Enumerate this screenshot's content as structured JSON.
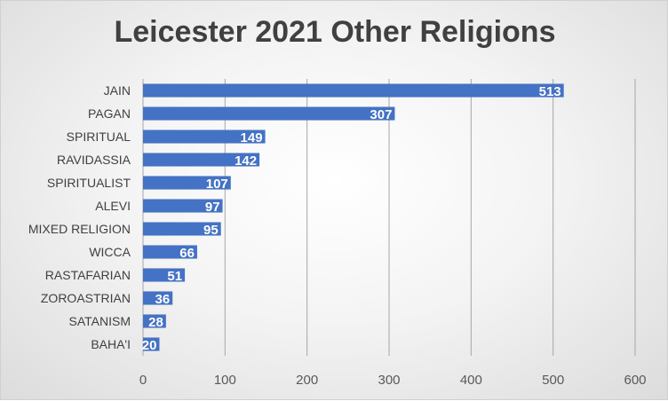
{
  "chart_data": {
    "type": "bar",
    "orientation": "horizontal",
    "title": "Leicester 2021 Other Religions",
    "xlabel": "",
    "ylabel": "",
    "categories": [
      "JAIN",
      "PAGAN",
      "SPIRITUAL",
      "RAVIDASSIA",
      "SPIRITUALIST",
      "ALEVI",
      "MIXED RELIGION",
      "WICCA",
      "RASTAFARIAN",
      "ZOROASTRIAN",
      "SATANISM",
      "BAHA'I"
    ],
    "values": [
      513,
      307,
      149,
      142,
      107,
      97,
      95,
      66,
      51,
      36,
      28,
      20
    ],
    "xlim": [
      0,
      600
    ],
    "xticks": [
      0,
      100,
      200,
      300,
      400,
      500,
      600
    ],
    "grid": "vertical",
    "data_labels": "inside-end",
    "bar_color": "#4472C4",
    "label_color": "#FFFFFF"
  }
}
